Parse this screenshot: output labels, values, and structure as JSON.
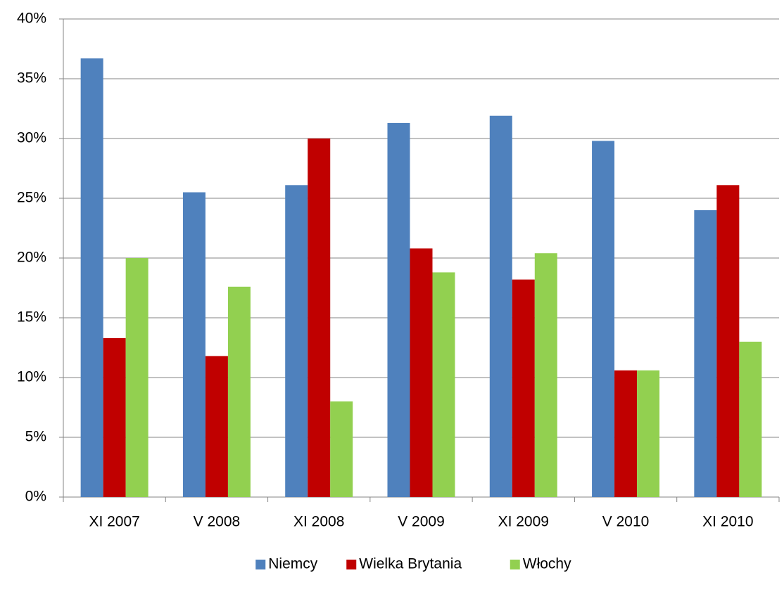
{
  "chart_data": {
    "type": "bar",
    "categories": [
      "XI 2007",
      "V 2008",
      "XI 2008",
      "V 2009",
      "XI 2009",
      "V 2010",
      "XI 2010"
    ],
    "series": [
      {
        "name": "Niemcy",
        "color": "#4f81bd",
        "values": [
          36.7,
          25.5,
          26.1,
          31.3,
          31.9,
          29.8,
          24.0
        ]
      },
      {
        "name": "Wielka Brytania",
        "color": "#c00000",
        "values": [
          13.3,
          11.8,
          30.0,
          20.8,
          18.2,
          10.6,
          26.1
        ]
      },
      {
        "name": "Włochy",
        "color": "#92d050",
        "values": [
          20.0,
          17.6,
          8.0,
          18.8,
          20.4,
          10.6,
          13.0
        ]
      }
    ],
    "ylim": [
      0,
      40
    ],
    "yticks": [
      {
        "value": 0,
        "label": "0%"
      },
      {
        "value": 5,
        "label": "5%"
      },
      {
        "value": 10,
        "label": "10%"
      },
      {
        "value": 15,
        "label": "15%"
      },
      {
        "value": 20,
        "label": "20%"
      },
      {
        "value": 25,
        "label": "25%"
      },
      {
        "value": 30,
        "label": "30%"
      },
      {
        "value": 35,
        "label": "35%"
      },
      {
        "value": 40,
        "label": "40%"
      }
    ],
    "grid": true,
    "legend": "bottom"
  }
}
